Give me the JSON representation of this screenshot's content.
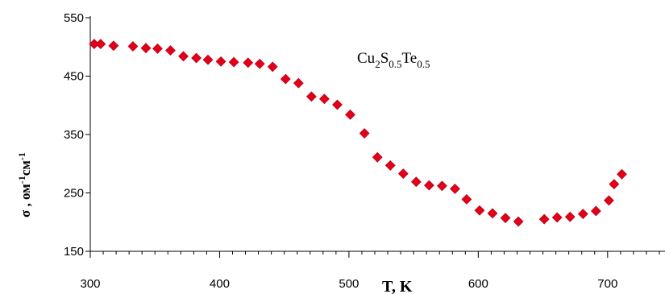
{
  "chart_data": {
    "type": "scatter",
    "title": "",
    "xlabel": "T, K",
    "ylabel_parts": {
      "base": "σ , ом",
      "sup1": "-1",
      "mid": "см",
      "sup2": "-1"
    },
    "annotation": {
      "parts": [
        "Cu",
        "2",
        "S",
        "0.5",
        "Te",
        "0.5"
      ]
    },
    "xlim": [
      300,
      745
    ],
    "ylim": [
      150,
      550
    ],
    "xticks": [
      300,
      400,
      500,
      600,
      700
    ],
    "yticks": [
      150,
      250,
      350,
      450,
      550
    ],
    "marker_color": "#e0001a",
    "series": [
      {
        "x": [
          303,
          308,
          318,
          333,
          343,
          352,
          362,
          372,
          382,
          391,
          401,
          411,
          422,
          431,
          441,
          451,
          461,
          471,
          481,
          491,
          501,
          512,
          522,
          532,
          542,
          552,
          562,
          572,
          582,
          591,
          601,
          611,
          621,
          631,
          651,
          661,
          671,
          681,
          691,
          701,
          705,
          711
        ],
        "y": [
          505,
          505,
          502,
          501,
          498,
          497,
          494,
          484,
          481,
          478,
          475,
          474,
          473,
          471,
          466,
          445,
          438,
          415,
          411,
          401,
          384,
          352,
          311,
          297,
          283,
          269,
          263,
          262,
          257,
          239,
          220,
          215,
          207,
          201,
          205,
          208,
          209,
          214,
          219,
          237,
          265,
          282
        ]
      }
    ]
  }
}
